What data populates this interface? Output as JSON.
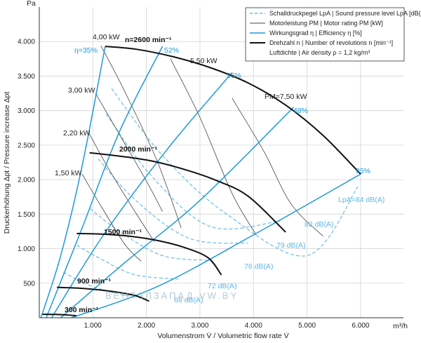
{
  "chart_data": {
    "type": "line",
    "title": "",
    "xlabel": "Volumenstrom V̇ / Volumetric flow rate V̇",
    "x_unit": "m³/h",
    "ylabel": "Druckerhöhung Δpt / Pressure increase Δpt",
    "y_unit": "Pa",
    "xlim": [
      0,
      6800
    ],
    "ylim": [
      0,
      4500
    ],
    "xticks": [
      1000,
      2000,
      3000,
      4000,
      5000,
      6000
    ],
    "xtick_labels": [
      "1.000",
      "2.000",
      "3.000",
      "4.000",
      "5.000",
      "6.000"
    ],
    "yticks": [
      500,
      1000,
      1500,
      2000,
      2500,
      3000,
      3500,
      4000
    ],
    "ytick_labels": [
      "500",
      "1.000",
      "1.500",
      "2.000",
      "2.500",
      "3.000",
      "3.500",
      "4.000"
    ],
    "legend": {
      "position": "top-right",
      "entries": [
        {
          "text": "Schalldruckpegel LpA | Sound pressure level LpA [dB(A)]",
          "style": "dashed",
          "color": "#5cb8e6"
        },
        {
          "text": "Motorleistung PM | Motor rating PM [kW]",
          "style": "solid-thin",
          "color": "#444444"
        },
        {
          "text": "Wirkungsgrad η | Efficiency η [%]",
          "style": "solid",
          "color": "#1e9ad6"
        },
        {
          "text": "Drehzahl n | Number of revolutions n [min⁻¹]",
          "style": "solid-thick",
          "color": "#111111"
        },
        {
          "text": "Luftdichte | Air density ρ = 1,2 kg/m³",
          "style": "none",
          "color": ""
        }
      ]
    },
    "speed_curves": [
      {
        "label": "n=2600 min⁻¹",
        "points": [
          [
            1230,
            3930
          ],
          [
            1800,
            3890
          ],
          [
            2500,
            3780
          ],
          [
            3200,
            3620
          ],
          [
            3900,
            3400
          ],
          [
            4600,
            3080
          ],
          [
            5300,
            2640
          ],
          [
            6000,
            2080
          ]
        ]
      },
      {
        "label": "2000 min⁻¹",
        "points": [
          [
            940,
            2390
          ],
          [
            1500,
            2340
          ],
          [
            2100,
            2270
          ],
          [
            2700,
            2150
          ],
          [
            3300,
            1990
          ],
          [
            3900,
            1760
          ],
          [
            4600,
            1240
          ]
        ]
      },
      {
        "label": "1500 min⁻¹",
        "points": [
          [
            700,
            1220
          ],
          [
            1200,
            1210
          ],
          [
            1700,
            1180
          ],
          [
            2200,
            1120
          ],
          [
            2700,
            1020
          ],
          [
            3150,
            870
          ],
          [
            3400,
            620
          ]
        ]
      },
      {
        "label": "900 min⁻¹",
        "points": [
          [
            330,
            440
          ],
          [
            700,
            430
          ],
          [
            1100,
            405
          ],
          [
            1500,
            365
          ],
          [
            1800,
            320
          ],
          [
            2050,
            240
          ]
        ]
      },
      {
        "label": "300 min⁻¹",
        "points": [
          [
            60,
            50
          ],
          [
            300,
            48
          ],
          [
            520,
            40
          ],
          [
            690,
            30
          ]
        ]
      }
    ],
    "efficiency_curves": [
      {
        "label": "η=35%",
        "points": [
          [
            30,
            0
          ],
          [
            400,
            900
          ],
          [
            800,
            2200
          ],
          [
            1230,
            3930
          ]
        ]
      },
      {
        "label": "52%",
        "points": [
          [
            130,
            0
          ],
          [
            800,
            1300
          ],
          [
            1500,
            2700
          ],
          [
            2300,
            3930
          ]
        ]
      },
      {
        "label": "55%",
        "points": [
          [
            230,
            0
          ],
          [
            1200,
            1200
          ],
          [
            2400,
            2450
          ],
          [
            3600,
            3550
          ]
        ]
      },
      {
        "label": "48%",
        "points": [
          [
            400,
            0
          ],
          [
            1600,
            800
          ],
          [
            3000,
            1700
          ],
          [
            4750,
            3050
          ]
        ]
      },
      {
        "label": "35%",
        "points": [
          [
            600,
            0
          ],
          [
            2200,
            450
          ],
          [
            4000,
            1200
          ],
          [
            6000,
            2080
          ]
        ]
      }
    ],
    "motor_rating_lines": [
      {
        "label": "4,00 kW",
        "points": [
          [
            1150,
            3940
          ],
          [
            1600,
            3270
          ],
          [
            2200,
            2270
          ],
          [
            2650,
            1300
          ]
        ]
      },
      {
        "label": "5,50 kW",
        "points": [
          [
            2450,
            3750
          ],
          [
            3000,
            2900
          ],
          [
            3600,
            1800
          ],
          [
            4050,
            1200
          ]
        ]
      },
      {
        "label": "PM=7,50 kW",
        "points": [
          [
            3600,
            3180
          ],
          [
            4200,
            2400
          ],
          [
            4700,
            1650
          ],
          [
            5300,
            1180
          ]
        ]
      },
      {
        "label": "3,00 kW",
        "points": [
          [
            1050,
            3250
          ],
          [
            1500,
            2650
          ],
          [
            2000,
            1980
          ],
          [
            2300,
            1540
          ]
        ]
      },
      {
        "label": "2,20 kW",
        "points": [
          [
            930,
            2670
          ],
          [
            1300,
            2150
          ],
          [
            1800,
            1520
          ],
          [
            2150,
            1100
          ]
        ]
      },
      {
        "label": "1,50 kW",
        "points": [
          [
            800,
            2080
          ],
          [
            1150,
            1620
          ],
          [
            1600,
            1060
          ],
          [
            1900,
            820
          ]
        ]
      }
    ],
    "sound_level_lines": [
      {
        "label": "LpA=84 dB(A)",
        "points": [
          [
            1350,
            3320
          ],
          [
            2300,
            2350
          ],
          [
            3500,
            1500
          ],
          [
            5000,
            900
          ],
          [
            5950,
            1900
          ]
        ]
      },
      {
        "label": "82 dB(A)",
        "points": [
          [
            1250,
            2950
          ],
          [
            2100,
            2050
          ],
          [
            3200,
            1320
          ],
          [
            4500,
            1400
          ]
        ]
      },
      {
        "label": "79 dB(A)",
        "points": [
          [
            1100,
            2300
          ],
          [
            1800,
            1700
          ],
          [
            2800,
            1150
          ],
          [
            3900,
            1080
          ]
        ]
      },
      {
        "label": "76 dB(A)",
        "points": [
          [
            950,
            1580
          ],
          [
            1500,
            1250
          ],
          [
            2300,
            900
          ],
          [
            3200,
            830
          ]
        ]
      },
      {
        "label": "72 dB(A)",
        "points": [
          [
            700,
            1050
          ],
          [
            1200,
            830
          ],
          [
            1800,
            620
          ],
          [
            2600,
            560
          ]
        ]
      },
      {
        "label": "68 dB(A)",
        "points": [
          [
            450,
            660
          ],
          [
            900,
            480
          ],
          [
            1400,
            360
          ],
          [
            1800,
            300
          ]
        ]
      }
    ],
    "watermark": "ВЕНТЗЛЗАПАД   VW.BY"
  }
}
